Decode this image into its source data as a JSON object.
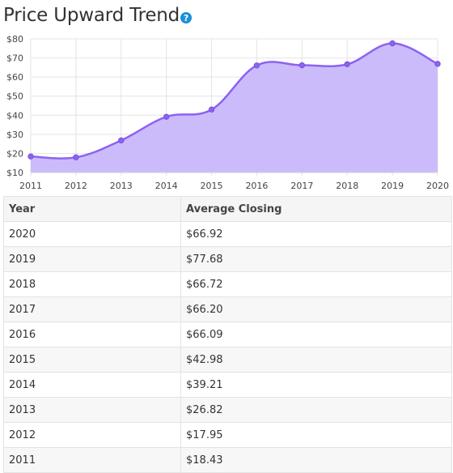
{
  "title": "Price Upward Trend",
  "help_icon": "help-icon",
  "accent_color": "#8b63ef",
  "fill_color": "#c9b7fb",
  "chart_data": {
    "type": "area",
    "x": [
      "2011",
      "2012",
      "2013",
      "2014",
      "2015",
      "2016",
      "2017",
      "2018",
      "2019",
      "2020"
    ],
    "series": [
      {
        "values": [
          18.43,
          17.95,
          26.82,
          39.21,
          42.98,
          66.09,
          66.2,
          66.72,
          77.68,
          66.92
        ]
      }
    ],
    "yticks": [
      "$10",
      "$20",
      "$30",
      "$40",
      "$50",
      "$60",
      "$70",
      "$80"
    ],
    "ylim": [
      10,
      80
    ],
    "grid": true
  },
  "table": {
    "headers": [
      "Year",
      "Average Closing"
    ],
    "rows": [
      [
        "2020",
        "$66.92"
      ],
      [
        "2019",
        "$77.68"
      ],
      [
        "2018",
        "$66.72"
      ],
      [
        "2017",
        "$66.20"
      ],
      [
        "2016",
        "$66.09"
      ],
      [
        "2015",
        "$42.98"
      ],
      [
        "2014",
        "$39.21"
      ],
      [
        "2013",
        "$26.82"
      ],
      [
        "2012",
        "$17.95"
      ],
      [
        "2011",
        "$18.43"
      ]
    ]
  }
}
